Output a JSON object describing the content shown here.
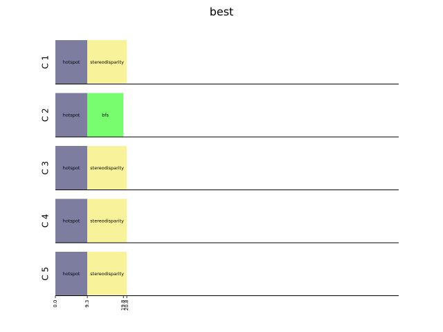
{
  "chart_data": {
    "type": "gantt",
    "title": "best",
    "xlim": [
      0,
      100
    ],
    "xticks": [
      {
        "value": 0,
        "label": "0.0"
      },
      9.3,
      19.8,
      20.8
    ],
    "rows": [
      {
        "name": "C 1",
        "segments": [
          {
            "label": "hotspot",
            "start": 0,
            "end": 9.3,
            "color": "#7d7da0"
          },
          {
            "label": "stereodisparity",
            "start": 9.3,
            "end": 20.8,
            "color": "#f8f29a"
          }
        ]
      },
      {
        "name": "C 2",
        "segments": [
          {
            "label": "hotspot",
            "start": 0,
            "end": 9.3,
            "color": "#7d7da0"
          },
          {
            "label": "bfs",
            "start": 9.3,
            "end": 19.8,
            "color": "#78fd6e"
          }
        ]
      },
      {
        "name": "C 3",
        "segments": [
          {
            "label": "hotspot",
            "start": 0,
            "end": 9.3,
            "color": "#7d7da0"
          },
          {
            "label": "stereodisparity",
            "start": 9.3,
            "end": 20.8,
            "color": "#f8f29a"
          }
        ]
      },
      {
        "name": "C 4",
        "segments": [
          {
            "label": "hotspot",
            "start": 0,
            "end": 9.3,
            "color": "#7d7da0"
          },
          {
            "label": "stereodisparity",
            "start": 9.3,
            "end": 20.8,
            "color": "#f8f29a"
          }
        ]
      },
      {
        "name": "C 5",
        "segments": [
          {
            "label": "hotspot",
            "start": 0,
            "end": 9.3,
            "color": "#7d7da0"
          },
          {
            "label": "stereodisparity",
            "start": 9.3,
            "end": 20.8,
            "color": "#f8f29a"
          }
        ]
      }
    ]
  }
}
